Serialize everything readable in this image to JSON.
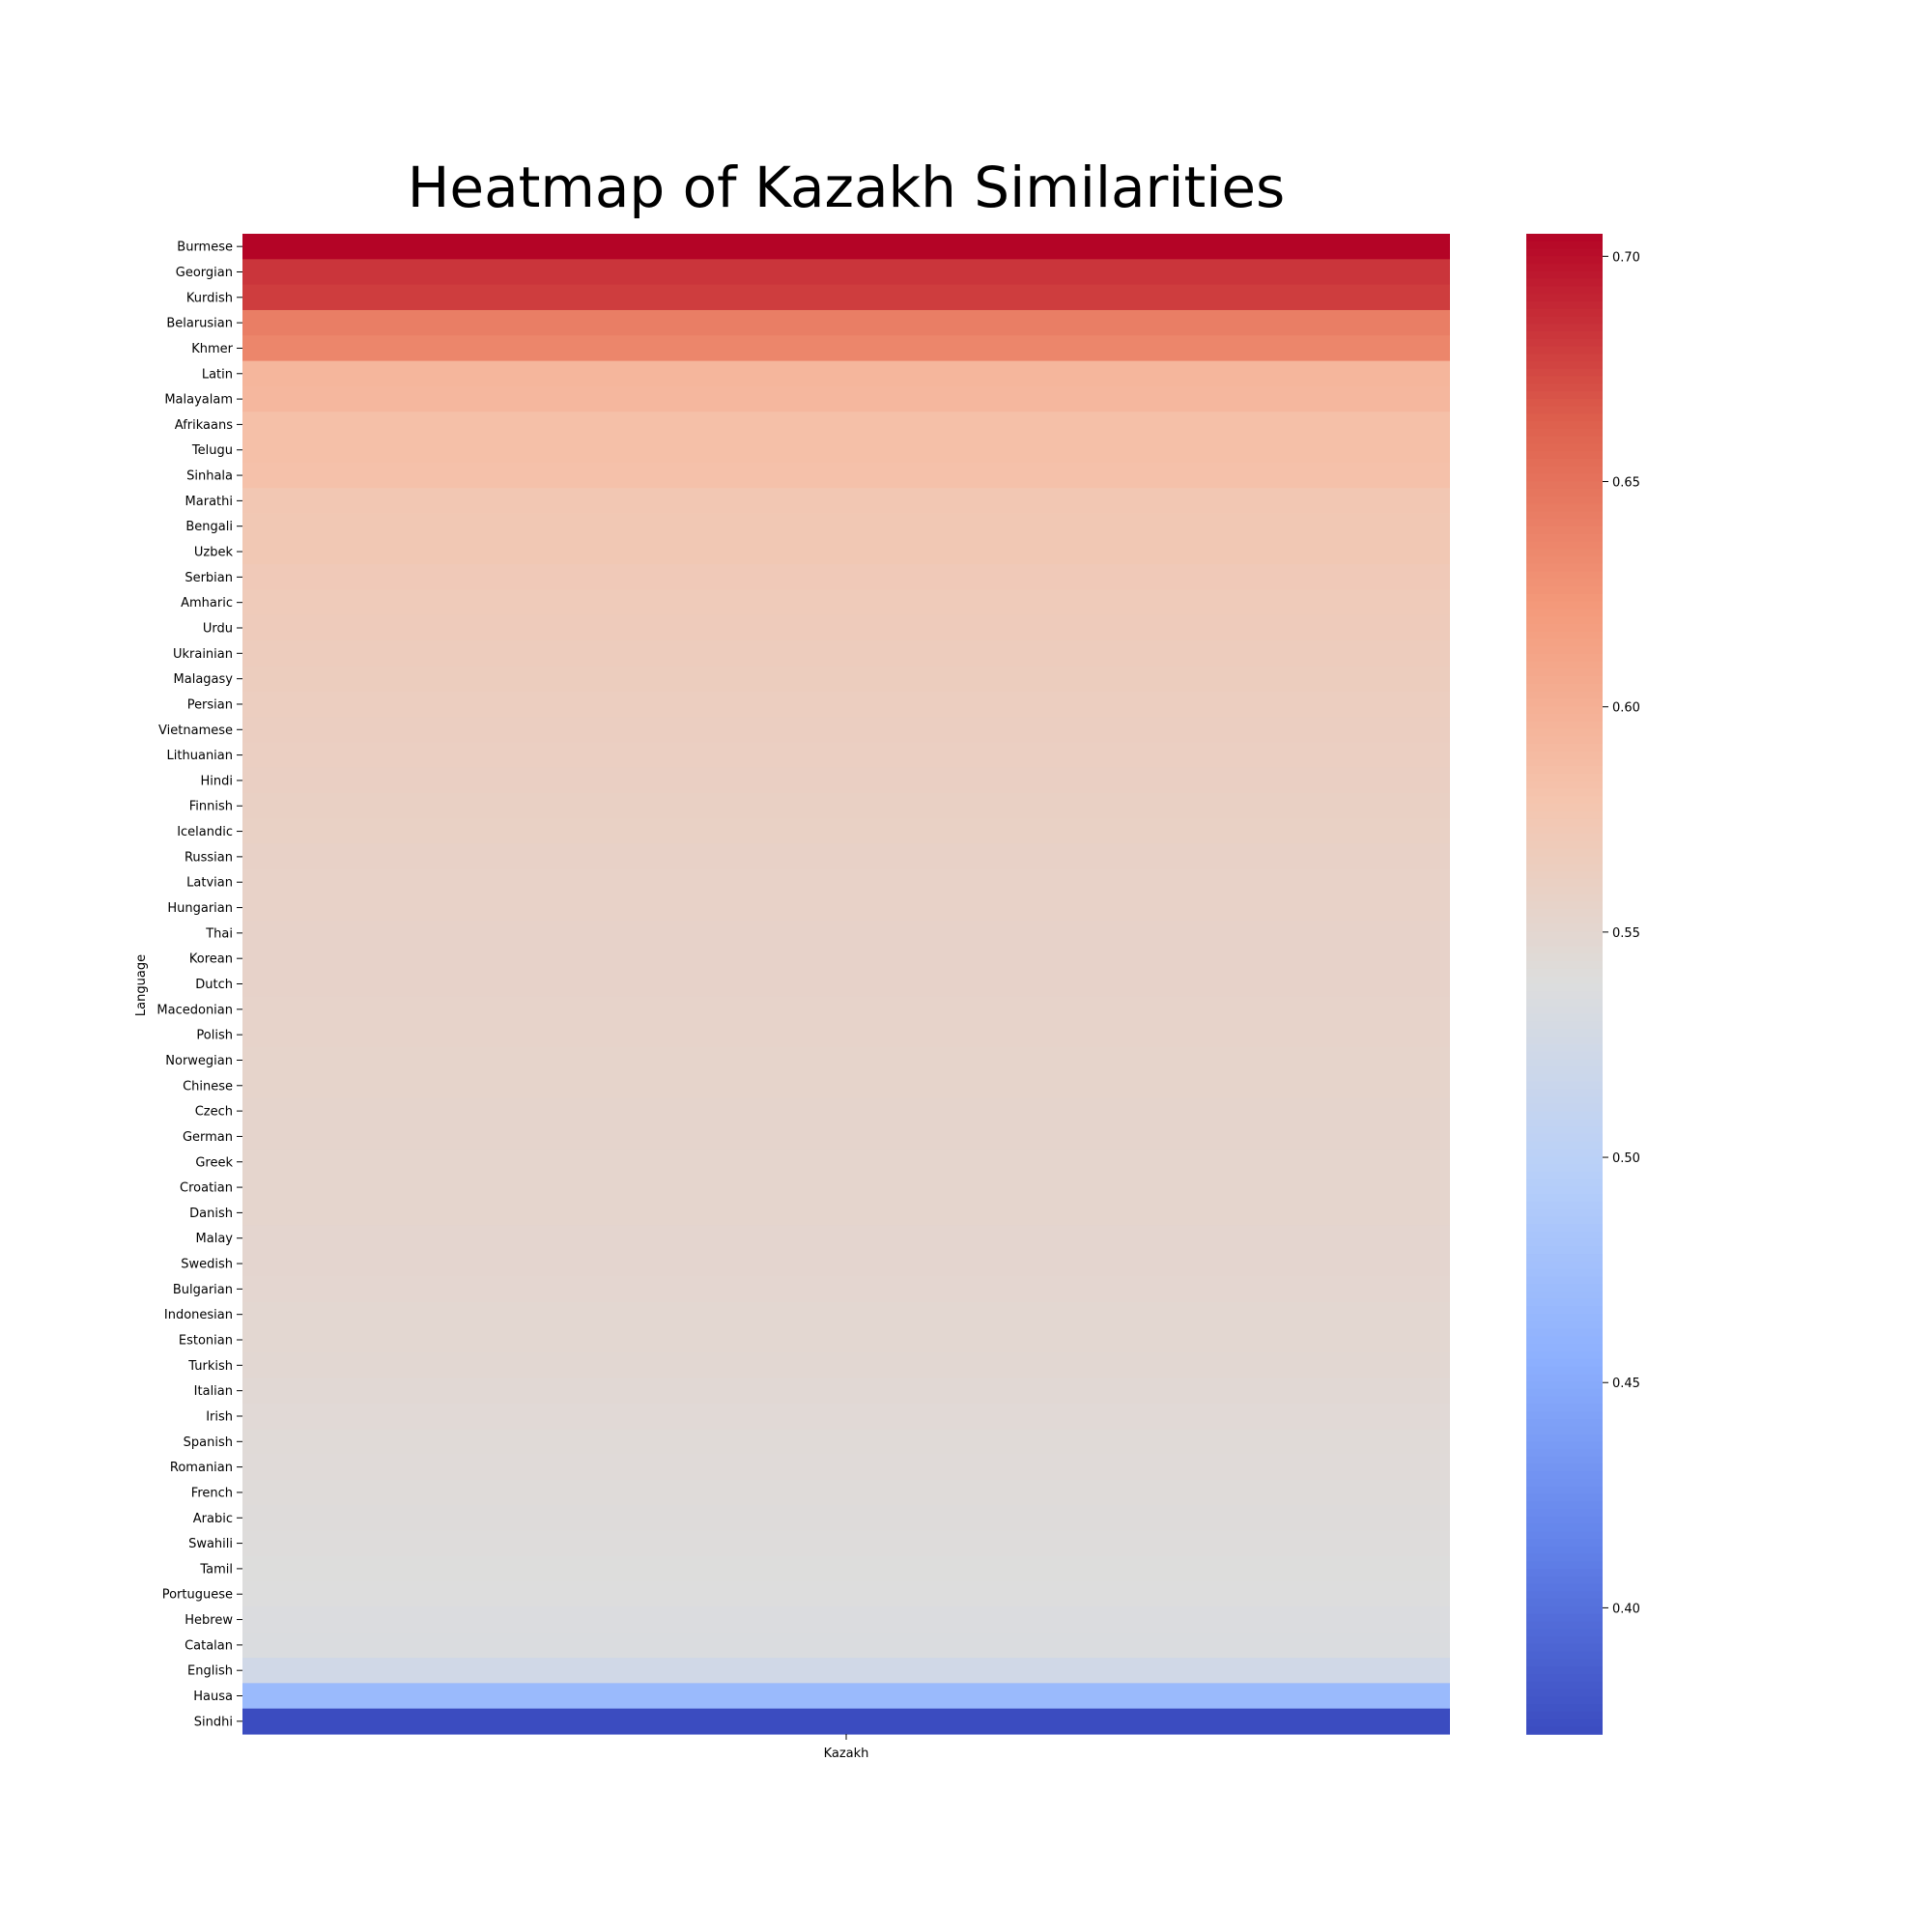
{
  "chart_data": {
    "type": "heatmap",
    "title": "Heatmap of Kazakh Similarities",
    "xlabel": "",
    "ylabel": "Language",
    "columns": [
      "Kazakh"
    ],
    "rows": [
      "Burmese",
      "Georgian",
      "Kurdish",
      "Belarusian",
      "Khmer",
      "Latin",
      "Malayalam",
      "Afrikaans",
      "Telugu",
      "Sinhala",
      "Marathi",
      "Bengali",
      "Uzbek",
      "Serbian",
      "Amharic",
      "Urdu",
      "Ukrainian",
      "Malagasy",
      "Persian",
      "Vietnamese",
      "Lithuanian",
      "Hindi",
      "Finnish",
      "Icelandic",
      "Russian",
      "Latvian",
      "Hungarian",
      "Thai",
      "Korean",
      "Dutch",
      "Macedonian",
      "Polish",
      "Norwegian",
      "Chinese",
      "Czech",
      "German",
      "Greek",
      "Croatian",
      "Danish",
      "Malay",
      "Swedish",
      "Bulgarian",
      "Indonesian",
      "Estonian",
      "Turkish",
      "Italian",
      "Irish",
      "Spanish",
      "Romanian",
      "French",
      "Arabic",
      "Swahili",
      "Tamil",
      "Portuguese",
      "Hebrew",
      "Catalan",
      "English",
      "Hausa",
      "Sindhi"
    ],
    "values": [
      0.705,
      0.683,
      0.679,
      0.642,
      0.636,
      0.594,
      0.593,
      0.584,
      0.584,
      0.583,
      0.575,
      0.574,
      0.574,
      0.571,
      0.569,
      0.568,
      0.566,
      0.565,
      0.564,
      0.563,
      0.562,
      0.561,
      0.56,
      0.559,
      0.558,
      0.557,
      0.557,
      0.556,
      0.556,
      0.556,
      0.555,
      0.555,
      0.554,
      0.554,
      0.553,
      0.553,
      0.552,
      0.552,
      0.552,
      0.551,
      0.551,
      0.55,
      0.549,
      0.549,
      0.548,
      0.546,
      0.545,
      0.544,
      0.543,
      0.542,
      0.541,
      0.54,
      0.539,
      0.538,
      0.536,
      0.535,
      0.524,
      0.468,
      0.372
    ],
    "colormap": "coolwarm",
    "colorbar": {
      "min": 0.372,
      "max": 0.705,
      "ticks": [
        0.4,
        0.45,
        0.5,
        0.55,
        0.6,
        0.65,
        0.7
      ],
      "tick_labels": [
        "0.40",
        "0.45",
        "0.50",
        "0.55",
        "0.60",
        "0.65",
        "0.70"
      ]
    },
    "grid": false,
    "legend": "colorbar-right"
  }
}
